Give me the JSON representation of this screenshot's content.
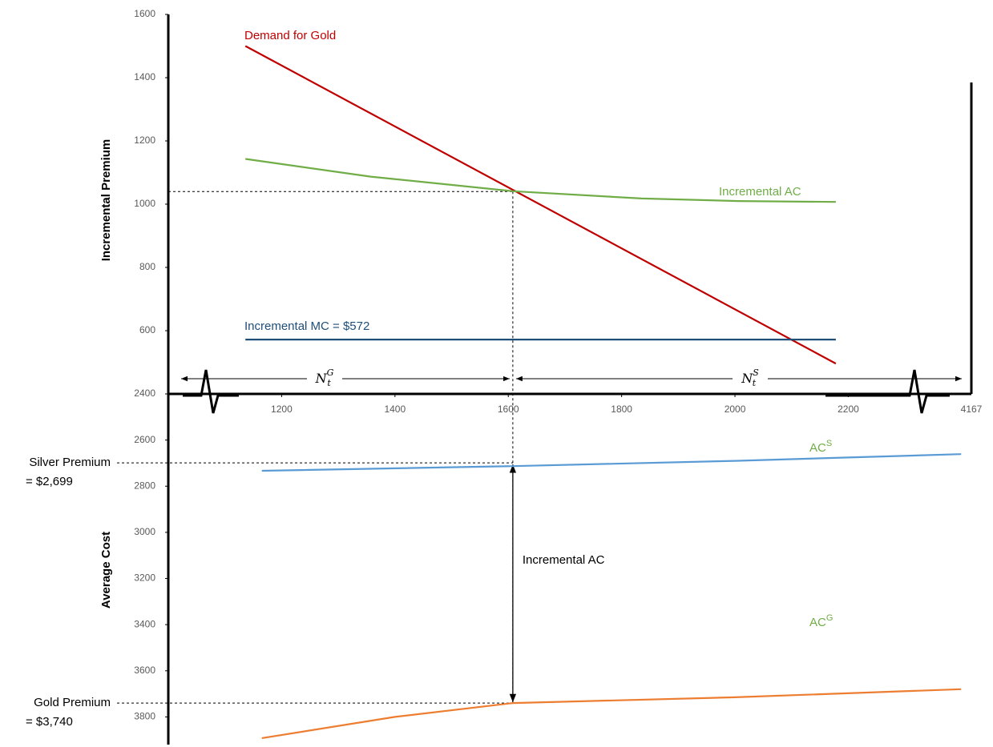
{
  "chart_data": [
    {
      "type": "line",
      "y_label": "Incremental Premium",
      "xlim": [
        1000,
        2420
      ],
      "xticks": [
        1200,
        1400,
        1600,
        1800,
        2000,
        2200
      ],
      "x_end_label": "4167",
      "ylim": [
        400,
        1600
      ],
      "yticks": [
        600,
        800,
        1000,
        1200,
        1400,
        1600
      ],
      "series": [
        {
          "name": "Demand for Gold",
          "color": "#c00000",
          "x": [
            1136,
            2178
          ],
          "values": [
            1500,
            496
          ]
        },
        {
          "name": "Incremental AC",
          "color": "#70ad47",
          "x": [
            1136,
            1357,
            1608,
            1835,
            2006,
            2178
          ],
          "values": [
            1143,
            1087,
            1041,
            1018,
            1010,
            1007
          ]
        },
        {
          "name": "Incremental MC = $572",
          "color": "#1f4e79",
          "x": [
            1136,
            2178
          ],
          "values": [
            572,
            572
          ]
        }
      ],
      "equilibrium": {
        "x": 1608,
        "y": 1040
      },
      "quantity_labels": [
        {
          "text": "N",
          "sub": "t",
          "sup": "G"
        },
        {
          "text": "N",
          "sub": "t",
          "sup": "S"
        }
      ]
    },
    {
      "type": "line",
      "y_label": "Average Cost",
      "y_inverted": true,
      "xlim": [
        1000,
        2420
      ],
      "ylim": [
        2400,
        3920
      ],
      "yticks": [
        2400,
        2600,
        2800,
        3000,
        3200,
        3400,
        3600,
        3800
      ],
      "series": [
        {
          "name": "AC",
          "name_sup": "S",
          "label_color": "#70ad47",
          "color": "#5b9bd5",
          "x": [
            1165,
            1608,
            2000,
            2399
          ],
          "values": [
            2733,
            2713,
            2690,
            2661
          ]
        },
        {
          "name": "AC",
          "name_sup": "G",
          "label_color": "#70ad47",
          "color": "#ed7d31",
          "x": [
            1165,
            1400,
            1608,
            2000,
            2399
          ],
          "values": [
            3892,
            3800,
            3740,
            3715,
            3680
          ]
        }
      ],
      "premiums": [
        {
          "label": "Silver Premium",
          "value_label": "= $2,699",
          "value": 2699
        },
        {
          "label": "Gold Premium",
          "value_label": "= $3,740",
          "value": 3740
        }
      ],
      "gap_label": "Incremental AC"
    }
  ]
}
